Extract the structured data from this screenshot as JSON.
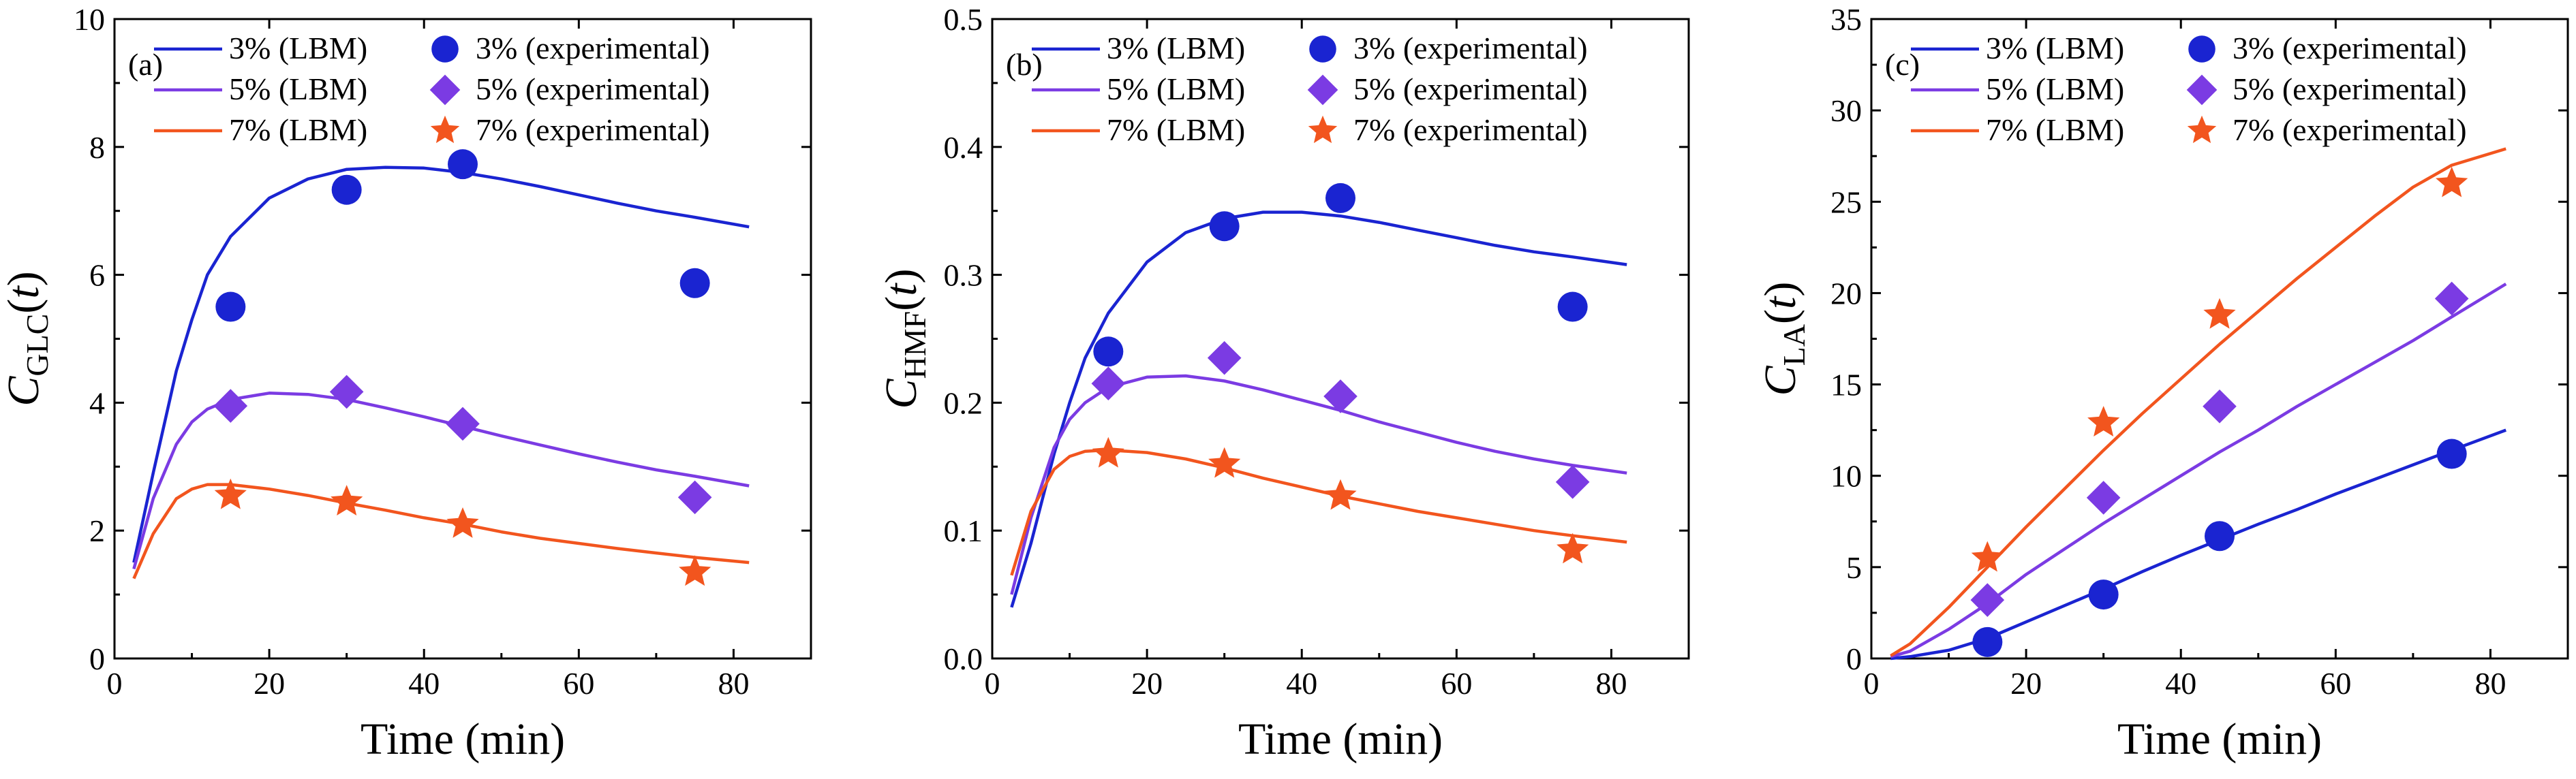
{
  "series_styles": {
    "3%": {
      "color": "#1a24d1",
      "marker": "circle"
    },
    "5%": {
      "color": "#7b3be3",
      "marker": "diamond"
    },
    "7%": {
      "color": "#f2551e",
      "marker": "star"
    }
  },
  "chart_data": [
    {
      "type": "line",
      "panel_label": "(a)",
      "xlabel": "Time (min)",
      "ylabel_main": "C",
      "ylabel_sub": "GLC",
      "ylabel_tail": "(t)",
      "xlim": [
        0,
        90
      ],
      "ylim": [
        0,
        10
      ],
      "xticks": [
        0,
        20,
        40,
        60,
        80
      ],
      "yticks": [
        0,
        2,
        4,
        6,
        8,
        10
      ],
      "legend_placement": "top-left",
      "series": [
        {
          "key": "3%",
          "name": "3% (LBM)",
          "kind": "line",
          "x": [
            2.5,
            5,
            8,
            10,
            12,
            15,
            20,
            25,
            30,
            35,
            40,
            45,
            50,
            55,
            60,
            65,
            70,
            75,
            82
          ],
          "values": [
            1.5,
            2.9,
            4.5,
            5.3,
            6.0,
            6.6,
            7.2,
            7.5,
            7.65,
            7.68,
            7.67,
            7.6,
            7.5,
            7.38,
            7.25,
            7.12,
            7.0,
            6.9,
            6.75
          ]
        },
        {
          "key": "3%",
          "name": "3% (experimental)",
          "kind": "scatter",
          "x": [
            15,
            30,
            45,
            75
          ],
          "values": [
            5.5,
            7.33,
            7.73,
            5.87
          ]
        },
        {
          "key": "5%",
          "name": "5% (LBM)",
          "kind": "line",
          "x": [
            2.5,
            5,
            8,
            10,
            12,
            15,
            20,
            25,
            30,
            35,
            40,
            45,
            50,
            55,
            60,
            65,
            70,
            75,
            82
          ],
          "values": [
            1.4,
            2.5,
            3.35,
            3.7,
            3.9,
            4.05,
            4.15,
            4.13,
            4.05,
            3.92,
            3.78,
            3.63,
            3.48,
            3.34,
            3.2,
            3.07,
            2.95,
            2.85,
            2.7
          ]
        },
        {
          "key": "5%",
          "name": "5% (experimental)",
          "kind": "scatter",
          "x": [
            15,
            30,
            45,
            75
          ],
          "values": [
            3.95,
            4.17,
            3.67,
            2.52
          ]
        },
        {
          "key": "7%",
          "name": "7% (LBM)",
          "kind": "line",
          "x": [
            2.5,
            5,
            8,
            10,
            12,
            15,
            20,
            25,
            30,
            35,
            40,
            45,
            50,
            55,
            60,
            65,
            70,
            75,
            82
          ],
          "values": [
            1.25,
            1.95,
            2.5,
            2.65,
            2.72,
            2.72,
            2.65,
            2.55,
            2.43,
            2.32,
            2.2,
            2.1,
            1.98,
            1.88,
            1.8,
            1.72,
            1.65,
            1.58,
            1.5
          ]
        },
        {
          "key": "7%",
          "name": "7% (experimental)",
          "kind": "scatter",
          "x": [
            15,
            30,
            45,
            75
          ],
          "values": [
            2.55,
            2.45,
            2.1,
            1.35
          ]
        }
      ]
    },
    {
      "type": "line",
      "panel_label": "(b)",
      "xlabel": "Time (min)",
      "ylabel_main": "C",
      "ylabel_sub": "HMF",
      "ylabel_tail": "(t)",
      "xlim": [
        0,
        90
      ],
      "ylim": [
        0,
        0.5
      ],
      "xticks": [
        0,
        20,
        40,
        60,
        80
      ],
      "yticks": [
        0.0,
        0.1,
        0.2,
        0.3,
        0.4,
        0.5
      ],
      "ytick_labels": [
        "0.0",
        "0.1",
        "0.2",
        "0.3",
        "0.4",
        "0.5"
      ],
      "legend_placement": "top-left",
      "series": [
        {
          "key": "3%",
          "name": "3% (LBM)",
          "kind": "line",
          "x": [
            2.5,
            5,
            8,
            10,
            12,
            15,
            20,
            25,
            30,
            35,
            40,
            45,
            50,
            55,
            60,
            65,
            70,
            75,
            82
          ],
          "values": [
            0.04,
            0.09,
            0.16,
            0.2,
            0.235,
            0.27,
            0.31,
            0.333,
            0.344,
            0.349,
            0.349,
            0.346,
            0.341,
            0.335,
            0.329,
            0.323,
            0.318,
            0.314,
            0.308
          ]
        },
        {
          "key": "3%",
          "name": "3% (experimental)",
          "kind": "scatter",
          "x": [
            15,
            30,
            45,
            75
          ],
          "values": [
            0.24,
            0.338,
            0.36,
            0.275
          ]
        },
        {
          "key": "5%",
          "name": "5% (LBM)",
          "kind": "line",
          "x": [
            2.5,
            5,
            8,
            10,
            12,
            15,
            20,
            25,
            30,
            35,
            40,
            45,
            50,
            55,
            60,
            65,
            70,
            75,
            82
          ],
          "values": [
            0.05,
            0.11,
            0.165,
            0.187,
            0.2,
            0.212,
            0.22,
            0.221,
            0.217,
            0.21,
            0.202,
            0.194,
            0.185,
            0.177,
            0.169,
            0.162,
            0.156,
            0.151,
            0.145
          ]
        },
        {
          "key": "5%",
          "name": "5% (experimental)",
          "kind": "scatter",
          "x": [
            15,
            30,
            45,
            75
          ],
          "values": [
            0.215,
            0.235,
            0.205,
            0.138
          ]
        },
        {
          "key": "7%",
          "name": "7% (LBM)",
          "kind": "line",
          "x": [
            2.5,
            5,
            8,
            10,
            12,
            15,
            20,
            25,
            30,
            35,
            40,
            45,
            50,
            55,
            60,
            65,
            70,
            75,
            82
          ],
          "values": [
            0.065,
            0.115,
            0.148,
            0.158,
            0.162,
            0.163,
            0.161,
            0.156,
            0.149,
            0.141,
            0.134,
            0.127,
            0.121,
            0.115,
            0.11,
            0.105,
            0.1,
            0.096,
            0.091
          ]
        },
        {
          "key": "7%",
          "name": "7% (experimental)",
          "kind": "scatter",
          "x": [
            15,
            30,
            45,
            75
          ],
          "values": [
            0.16,
            0.152,
            0.127,
            0.085
          ]
        }
      ]
    },
    {
      "type": "line",
      "panel_label": "(c)",
      "xlabel": "Time (min)",
      "ylabel_main": "C",
      "ylabel_sub": "LA",
      "ylabel_tail": "(t)",
      "xlim": [
        0,
        90
      ],
      "ylim": [
        0,
        35
      ],
      "xticks": [
        0,
        20,
        40,
        60,
        80
      ],
      "yticks": [
        0,
        5,
        10,
        15,
        20,
        25,
        30,
        35
      ],
      "legend_placement": "top-left",
      "series": [
        {
          "key": "3%",
          "name": "3% (LBM)",
          "kind": "line",
          "x": [
            2.5,
            5,
            10,
            15,
            20,
            25,
            30,
            35,
            40,
            45,
            50,
            55,
            60,
            65,
            70,
            75,
            82
          ],
          "values": [
            0.0,
            0.1,
            0.45,
            1.1,
            2.0,
            2.9,
            3.8,
            4.75,
            5.65,
            6.5,
            7.35,
            8.15,
            9.0,
            9.8,
            10.6,
            11.4,
            12.5
          ]
        },
        {
          "key": "3%",
          "name": "3% (experimental)",
          "kind": "scatter",
          "x": [
            15,
            30,
            45,
            75
          ],
          "values": [
            0.9,
            3.5,
            6.7,
            11.2
          ]
        },
        {
          "key": "5%",
          "name": "5% (LBM)",
          "kind": "line",
          "x": [
            2.5,
            5,
            10,
            15,
            20,
            25,
            30,
            35,
            40,
            45,
            50,
            55,
            60,
            65,
            70,
            75,
            82
          ],
          "values": [
            0.1,
            0.4,
            1.6,
            3.0,
            4.6,
            6.0,
            7.4,
            8.7,
            10.0,
            11.3,
            12.5,
            13.8,
            15.0,
            16.2,
            17.4,
            18.7,
            20.5
          ]
        },
        {
          "key": "5%",
          "name": "5% (experimental)",
          "kind": "scatter",
          "x": [
            15,
            30,
            45,
            75
          ],
          "values": [
            3.2,
            8.8,
            13.8,
            19.7
          ]
        },
        {
          "key": "7%",
          "name": "7% (LBM)",
          "kind": "line",
          "x": [
            2.5,
            5,
            10,
            15,
            20,
            25,
            30,
            35,
            40,
            45,
            50,
            55,
            60,
            65,
            70,
            75,
            82
          ],
          "values": [
            0.15,
            0.8,
            2.8,
            5.0,
            7.2,
            9.3,
            11.4,
            13.4,
            15.3,
            17.2,
            19.0,
            20.8,
            22.5,
            24.2,
            25.8,
            27.0,
            27.9
          ]
        },
        {
          "key": "7%",
          "name": "7% (experimental)",
          "kind": "scatter",
          "x": [
            15,
            30,
            45,
            75
          ],
          "values": [
            5.5,
            12.9,
            18.8,
            26.0
          ]
        }
      ]
    }
  ]
}
